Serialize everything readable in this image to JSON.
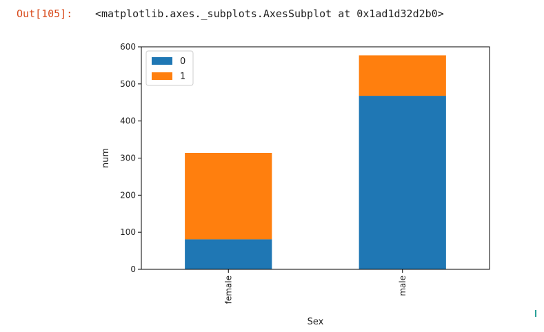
{
  "output": {
    "prompt": "Out[105]:",
    "repr": "<matplotlib.axes._subplots.AxesSubplot at 0x1ad1d32d2b0>"
  },
  "chart_data": {
    "type": "bar",
    "stacked": true,
    "categories": [
      "female",
      "male"
    ],
    "series": [
      {
        "name": "0",
        "values": [
          81,
          468
        ],
        "color": "#1f77b4"
      },
      {
        "name": "1",
        "values": [
          233,
          109
        ],
        "color": "#ff7f0e"
      }
    ],
    "xlabel": "Sex",
    "ylabel": "num",
    "ylim": [
      0,
      600
    ],
    "yticks": [
      0,
      100,
      200,
      300,
      400,
      500,
      600
    ],
    "grid": false,
    "legend_position": "top-left",
    "xtick_rotation": "vertical"
  }
}
